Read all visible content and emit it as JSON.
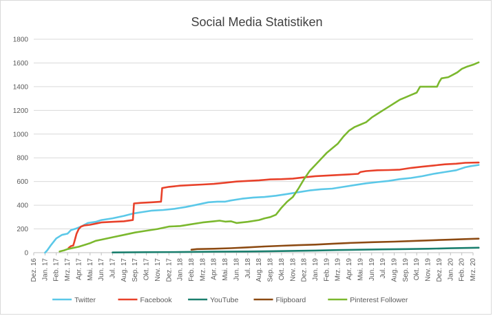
{
  "chart_data": {
    "type": "line",
    "title": "Social Media Statistiken",
    "xlabel": "",
    "ylabel": "",
    "ylim": [
      0,
      1800
    ],
    "yticks": [
      0,
      200,
      400,
      600,
      800,
      1000,
      1200,
      1400,
      1600,
      1800
    ],
    "x_tick_labels": [
      "Dez. 16",
      "Jan. 17",
      "Feb. 17",
      "Mrz. 17",
      "Apr. 17",
      "Mai. 17",
      "Jun. 17",
      "Jul. 17",
      "Aug. 17",
      "Sep. 17",
      "Okt. 17",
      "Nov. 17",
      "Dez. 17",
      "Jan. 18",
      "Feb. 18",
      "Mrz. 18",
      "Apr. 18",
      "Mai. 18",
      "Jun. 18",
      "Jul. 18",
      "Aug. 18",
      "Sep. 18",
      "Okt. 18",
      "Nov. 18",
      "Dez. 18",
      "Jan. 19",
      "Feb. 19",
      "Mrz. 19",
      "Apr. 19",
      "Mai. 19",
      "Jun. 19",
      "Jul. 19",
      "Aug. 19",
      "Sep. 19",
      "Okt. 19",
      "Nov. 19",
      "Dez. 19",
      "Jan. 20",
      "Feb. 20",
      "Mrz. 20"
    ],
    "grid": true,
    "legend_position": "bottom",
    "series": [
      {
        "name": "Twitter",
        "color": "#5bc8e8",
        "points": [
          [
            1.0,
            0
          ],
          [
            1.2,
            20
          ],
          [
            1.5,
            60
          ],
          [
            2.0,
            120
          ],
          [
            2.5,
            150
          ],
          [
            3.0,
            160
          ],
          [
            3.3,
            190
          ],
          [
            3.8,
            205
          ],
          [
            4.2,
            220
          ],
          [
            4.8,
            250
          ],
          [
            5.5,
            260
          ],
          [
            6.0,
            275
          ],
          [
            7.0,
            290
          ],
          [
            8.0,
            310
          ],
          [
            8.8,
            330
          ],
          [
            9.5,
            340
          ],
          [
            10.5,
            355
          ],
          [
            11.5,
            360
          ],
          [
            12.5,
            370
          ],
          [
            13.5,
            385
          ],
          [
            14.5,
            405
          ],
          [
            15.5,
            425
          ],
          [
            16.3,
            430
          ],
          [
            17.0,
            430
          ],
          [
            17.5,
            440
          ],
          [
            18.5,
            455
          ],
          [
            19.5,
            465
          ],
          [
            20.5,
            470
          ],
          [
            21.5,
            480
          ],
          [
            22.5,
            495
          ],
          [
            23.5,
            510
          ],
          [
            24.5,
            525
          ],
          [
            25.5,
            535
          ],
          [
            26.5,
            540
          ],
          [
            27.5,
            555
          ],
          [
            28.5,
            570
          ],
          [
            29.5,
            585
          ],
          [
            30.5,
            595
          ],
          [
            31.5,
            605
          ],
          [
            32.5,
            620
          ],
          [
            33.5,
            630
          ],
          [
            34.5,
            645
          ],
          [
            35.5,
            665
          ],
          [
            36.5,
            680
          ],
          [
            37.5,
            695
          ],
          [
            38.3,
            720
          ],
          [
            38.8,
            730
          ],
          [
            39.5,
            740
          ]
        ]
      },
      {
        "name": "Facebook",
        "color": "#e8412a",
        "points": [
          [
            3.1,
            40
          ],
          [
            3.3,
            55
          ],
          [
            3.5,
            60
          ],
          [
            3.6,
            90
          ],
          [
            3.8,
            160
          ],
          [
            4.0,
            200
          ],
          [
            4.2,
            220
          ],
          [
            4.5,
            230
          ],
          [
            5.0,
            235
          ],
          [
            5.5,
            245
          ],
          [
            6.0,
            255
          ],
          [
            7.0,
            260
          ],
          [
            8.0,
            265
          ],
          [
            8.8,
            275
          ],
          [
            8.9,
            415
          ],
          [
            9.5,
            420
          ],
          [
            10.5,
            425
          ],
          [
            11.3,
            430
          ],
          [
            11.4,
            545
          ],
          [
            12.0,
            555
          ],
          [
            13.0,
            565
          ],
          [
            14.0,
            570
          ],
          [
            15.0,
            575
          ],
          [
            16.0,
            580
          ],
          [
            17.0,
            590
          ],
          [
            18.0,
            600
          ],
          [
            19.0,
            605
          ],
          [
            20.0,
            610
          ],
          [
            21.0,
            618
          ],
          [
            22.0,
            620
          ],
          [
            23.0,
            625
          ],
          [
            24.0,
            635
          ],
          [
            25.0,
            645
          ],
          [
            26.0,
            650
          ],
          [
            27.0,
            655
          ],
          [
            28.0,
            660
          ],
          [
            28.8,
            665
          ],
          [
            29.0,
            680
          ],
          [
            29.5,
            688
          ],
          [
            30.5,
            695
          ],
          [
            31.5,
            697
          ],
          [
            32.5,
            700
          ],
          [
            33.5,
            715
          ],
          [
            34.5,
            725
          ],
          [
            35.5,
            735
          ],
          [
            36.5,
            745
          ],
          [
            37.5,
            750
          ],
          [
            38.3,
            758
          ],
          [
            39.5,
            760
          ]
        ]
      },
      {
        "name": "YouTube",
        "color": "#1a7f6e",
        "points": [
          [
            7.0,
            2
          ],
          [
            10.0,
            4
          ],
          [
            13.0,
            5
          ],
          [
            16.0,
            8
          ],
          [
            19.0,
            10
          ],
          [
            21.0,
            12
          ],
          [
            23.0,
            15
          ],
          [
            25.0,
            18
          ],
          [
            27.0,
            22
          ],
          [
            29.0,
            25
          ],
          [
            31.0,
            28
          ],
          [
            33.0,
            30
          ],
          [
            35.0,
            33
          ],
          [
            37.0,
            37
          ],
          [
            39.5,
            42
          ]
        ]
      },
      {
        "name": "Flipboard",
        "color": "#8c4a12",
        "points": [
          [
            14.0,
            25
          ],
          [
            14.5,
            30
          ],
          [
            16.0,
            33
          ],
          [
            17.5,
            38
          ],
          [
            19.0,
            45
          ],
          [
            20.5,
            52
          ],
          [
            22.0,
            58
          ],
          [
            23.5,
            63
          ],
          [
            25.0,
            68
          ],
          [
            26.5,
            75
          ],
          [
            28.0,
            82
          ],
          [
            30.0,
            88
          ],
          [
            32.0,
            93
          ],
          [
            34.0,
            100
          ],
          [
            35.5,
            105
          ],
          [
            37.0,
            110
          ],
          [
            38.5,
            115
          ],
          [
            39.5,
            118
          ]
        ]
      },
      {
        "name": "Pinterest Follower",
        "color": "#7bb82e",
        "points": [
          [
            2.3,
            10
          ],
          [
            2.7,
            20
          ],
          [
            3.0,
            30
          ],
          [
            4.0,
            50
          ],
          [
            5.0,
            80
          ],
          [
            5.5,
            100
          ],
          [
            6.0,
            110
          ],
          [
            7.0,
            130
          ],
          [
            8.0,
            150
          ],
          [
            9.0,
            170
          ],
          [
            10.0,
            185
          ],
          [
            11.0,
            200
          ],
          [
            12.0,
            220
          ],
          [
            13.0,
            225
          ],
          [
            14.0,
            240
          ],
          [
            15.0,
            255
          ],
          [
            16.0,
            265
          ],
          [
            16.5,
            270
          ],
          [
            17.0,
            262
          ],
          [
            17.5,
            265
          ],
          [
            18.0,
            250
          ],
          [
            18.5,
            255
          ],
          [
            19.0,
            260
          ],
          [
            20.0,
            275
          ],
          [
            20.5,
            290
          ],
          [
            21.0,
            300
          ],
          [
            21.5,
            320
          ],
          [
            22.0,
            380
          ],
          [
            22.5,
            430
          ],
          [
            23.0,
            470
          ],
          [
            23.5,
            540
          ],
          [
            24.0,
            620
          ],
          [
            24.5,
            690
          ],
          [
            25.0,
            740
          ],
          [
            25.5,
            790
          ],
          [
            26.0,
            840
          ],
          [
            26.5,
            880
          ],
          [
            27.0,
            920
          ],
          [
            27.5,
            980
          ],
          [
            28.0,
            1030
          ],
          [
            28.5,
            1060
          ],
          [
            29.0,
            1080
          ],
          [
            29.5,
            1100
          ],
          [
            30.0,
            1140
          ],
          [
            30.5,
            1170
          ],
          [
            31.0,
            1200
          ],
          [
            31.5,
            1230
          ],
          [
            32.0,
            1260
          ],
          [
            32.5,
            1290
          ],
          [
            33.0,
            1310
          ],
          [
            33.5,
            1330
          ],
          [
            34.0,
            1350
          ],
          [
            34.3,
            1400
          ],
          [
            35.0,
            1400
          ],
          [
            35.8,
            1400
          ],
          [
            36.0,
            1440
          ],
          [
            36.2,
            1470
          ],
          [
            36.8,
            1480
          ],
          [
            37.2,
            1500
          ],
          [
            37.6,
            1520
          ],
          [
            38.0,
            1550
          ],
          [
            38.5,
            1570
          ],
          [
            39.0,
            1585
          ],
          [
            39.5,
            1605
          ]
        ]
      }
    ]
  }
}
